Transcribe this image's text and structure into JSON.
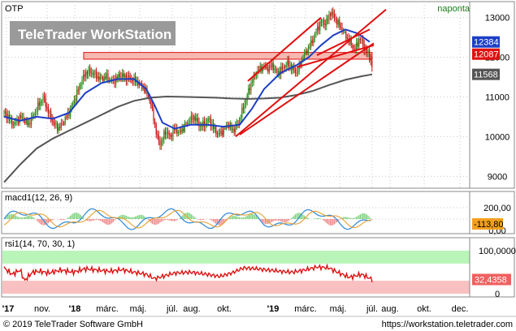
{
  "chart_data": [
    {
      "type": "candlestick",
      "title": "OTP",
      "period": "naponta",
      "watermark": "TeleTrader WorkStation",
      "ylim": [
        8700,
        13400
      ],
      "yticks": [
        9000,
        10000,
        11000,
        12000,
        13000
      ],
      "price_path": [
        [
          0,
          10600
        ],
        [
          5,
          10500
        ],
        [
          12,
          10300
        ],
        [
          20,
          10500
        ],
        [
          30,
          10300
        ],
        [
          40,
          10700
        ],
        [
          48,
          11000
        ],
        [
          55,
          10600
        ],
        [
          62,
          10300
        ],
        [
          68,
          10200
        ],
        [
          74,
          10400
        ],
        [
          80,
          10600
        ],
        [
          88,
          11000
        ],
        [
          95,
          11400
        ],
        [
          102,
          11650
        ],
        [
          110,
          11600
        ],
        [
          118,
          11450
        ],
        [
          126,
          11500
        ],
        [
          134,
          11380
        ],
        [
          142,
          11550
        ],
        [
          150,
          11500
        ],
        [
          158,
          11450
        ],
        [
          165,
          11350
        ],
        [
          172,
          11200
        ],
        [
          178,
          11000
        ],
        [
          183,
          10600
        ],
        [
          188,
          10000
        ],
        [
          193,
          9800
        ],
        [
          198,
          10150
        ],
        [
          204,
          10000
        ],
        [
          210,
          10200
        ],
        [
          216,
          10100
        ],
        [
          222,
          10250
        ],
        [
          228,
          10400
        ],
        [
          234,
          10500
        ],
        [
          240,
          10300
        ],
        [
          246,
          10300
        ],
        [
          252,
          10450
        ],
        [
          258,
          10200
        ],
        [
          264,
          10050
        ],
        [
          270,
          10150
        ],
        [
          276,
          10300
        ],
        [
          282,
          10150
        ],
        [
          288,
          10350
        ],
        [
          294,
          10700
        ],
        [
          300,
          11100
        ],
        [
          306,
          11450
        ],
        [
          312,
          11650
        ],
        [
          318,
          11750
        ],
        [
          324,
          11700
        ],
        [
          330,
          11800
        ],
        [
          336,
          11600
        ],
        [
          342,
          11700
        ],
        [
          348,
          11850
        ],
        [
          354,
          11750
        ],
        [
          360,
          11600
        ],
        [
          366,
          11900
        ],
        [
          372,
          12150
        ],
        [
          378,
          12350
        ],
        [
          384,
          12650
        ],
        [
          390,
          12900
        ],
        [
          396,
          12850
        ],
        [
          402,
          13150
        ],
        [
          408,
          12950
        ],
        [
          414,
          12750
        ],
        [
          420,
          12550
        ],
        [
          426,
          12350
        ],
        [
          432,
          12200
        ],
        [
          438,
          12500
        ],
        [
          444,
          12200
        ],
        [
          450,
          12050
        ],
        [
          453,
          11700
        ]
      ],
      "ma_fast": [
        [
          0,
          10500
        ],
        [
          20,
          10400
        ],
        [
          40,
          10500
        ],
        [
          60,
          10450
        ],
        [
          80,
          10600
        ],
        [
          100,
          11100
        ],
        [
          120,
          11350
        ],
        [
          140,
          11450
        ],
        [
          160,
          11450
        ],
        [
          175,
          11200
        ],
        [
          185,
          10800
        ],
        [
          195,
          10350
        ],
        [
          210,
          10200
        ],
        [
          230,
          10300
        ],
        [
          250,
          10300
        ],
        [
          270,
          10250
        ],
        [
          290,
          10300
        ],
        [
          305,
          10700
        ],
        [
          320,
          11200
        ],
        [
          340,
          11600
        ],
        [
          360,
          11800
        ],
        [
          375,
          12000
        ],
        [
          390,
          12300
        ],
        [
          405,
          12550
        ],
        [
          420,
          12700
        ],
        [
          435,
          12600
        ],
        [
          450,
          12384
        ]
      ],
      "ma_slow": [
        [
          0,
          8850
        ],
        [
          20,
          9300
        ],
        [
          40,
          9700
        ],
        [
          60,
          9950
        ],
        [
          80,
          10150
        ],
        [
          100,
          10350
        ],
        [
          120,
          10550
        ],
        [
          140,
          10750
        ],
        [
          160,
          10900
        ],
        [
          180,
          10980
        ],
        [
          200,
          11010
        ],
        [
          220,
          11000
        ],
        [
          240,
          10990
        ],
        [
          260,
          10980
        ],
        [
          280,
          10960
        ],
        [
          300,
          10950
        ],
        [
          320,
          10960
        ],
        [
          340,
          10980
        ],
        [
          360,
          11050
        ],
        [
          380,
          11150
        ],
        [
          400,
          11300
        ],
        [
          420,
          11430
        ],
        [
          440,
          11520
        ],
        [
          453,
          11568
        ]
      ],
      "resistance_zone": [
        11950,
        12120
      ],
      "trendlines": [
        {
          "from": [
            290,
            10050
          ],
          "to": [
            455,
            12350
          ]
        },
        {
          "from": [
            300,
            11400
          ],
          "to": [
            390,
            13000
          ]
        },
        {
          "from": [
            285,
            10000
          ],
          "to": [
            470,
            13200
          ]
        },
        {
          "from": [
            385,
            12050
          ],
          "to": [
            450,
            12700
          ]
        },
        {
          "from": [
            360,
            11750
          ],
          "to": [
            455,
            12300
          ]
        }
      ],
      "price_labels": [
        {
          "text": "12384",
          "bg": "#1c3fc4",
          "color": "#ffffff"
        },
        {
          "text": "12087",
          "bg": "#e01010",
          "color": "#ffffff"
        },
        {
          "text": "11568",
          "bg": "#555555",
          "color": "#ffffff"
        }
      ]
    },
    {
      "type": "line",
      "title": "macd1(12, 26, 9)",
      "yticks": [
        200,
        0
      ],
      "ytick_labels": [
        "200,00",
        "0,00"
      ],
      "last_label": "-113,80"
    },
    {
      "type": "line",
      "title": "rsi1(14, 70, 30, 1)",
      "ylim": [
        0,
        100
      ],
      "yticks": [
        100,
        0
      ],
      "ytick_labels": [
        "100,0000",
        "0"
      ],
      "overbought": 70,
      "oversold": 30,
      "last_label": "32,4358",
      "rsi_path": [
        [
          0,
          60
        ],
        [
          10,
          45
        ],
        [
          20,
          55
        ],
        [
          25,
          30
        ],
        [
          35,
          50
        ],
        [
          45,
          52
        ],
        [
          55,
          48
        ],
        [
          70,
          55
        ],
        [
          85,
          50
        ],
        [
          100,
          58
        ],
        [
          115,
          55
        ],
        [
          130,
          52
        ],
        [
          145,
          56
        ],
        [
          160,
          50
        ],
        [
          175,
          45
        ],
        [
          185,
          35
        ],
        [
          195,
          40
        ],
        [
          210,
          48
        ],
        [
          230,
          50
        ],
        [
          250,
          45
        ],
        [
          265,
          40
        ],
        [
          280,
          48
        ],
        [
          295,
          60
        ],
        [
          310,
          58
        ],
        [
          325,
          55
        ],
        [
          340,
          52
        ],
        [
          355,
          50
        ],
        [
          370,
          55
        ],
        [
          385,
          62
        ],
        [
          400,
          60
        ],
        [
          410,
          50
        ],
        [
          425,
          38
        ],
        [
          440,
          45
        ],
        [
          453,
          33
        ]
      ]
    }
  ],
  "xaxis": {
    "ticks": [
      "'17",
      "nov.",
      "'18",
      "márc.",
      "máj.",
      "júl.",
      "aug.",
      "okt.",
      "'19",
      "márc.",
      "máj.",
      "júl.",
      "aug.",
      "okt.",
      "dec."
    ]
  },
  "footer": {
    "copyright": "© 2019 TeleTrader Software GmbH",
    "url": "https://workstation.teletrader.com"
  },
  "colors": {
    "candle_up": "#2a8a1a",
    "candle_down": "#cc1111",
    "ma_fast": "#1c3fc4",
    "ma_slow": "#555555",
    "trend": "#e01010",
    "zone_fill": "#f6b8b0",
    "rsi_line": "#dd1111",
    "rsi_over": "#b9f5b9",
    "rsi_under": "#f8c0c0"
  }
}
